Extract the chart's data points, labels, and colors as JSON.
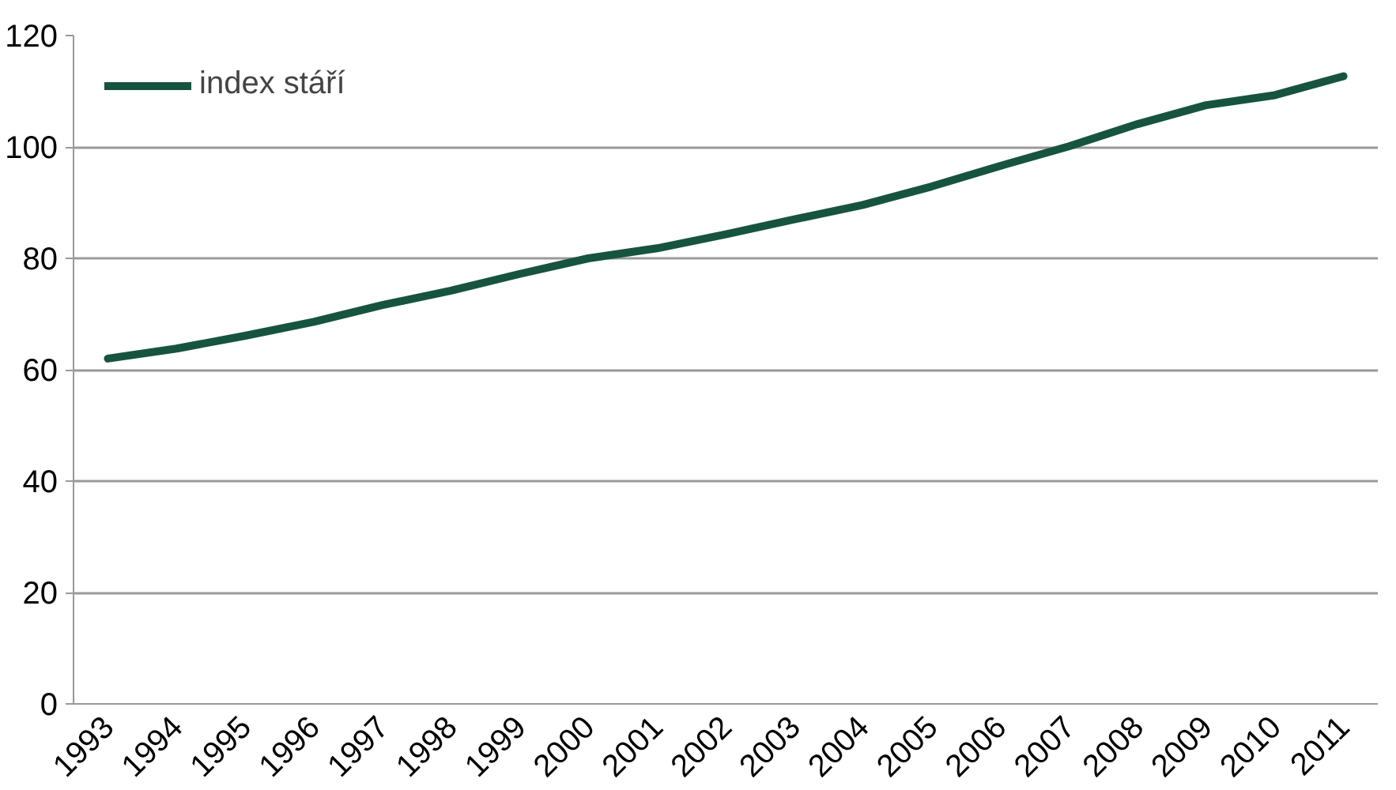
{
  "chart_data": {
    "type": "line",
    "categories": [
      "1993",
      "1994",
      "1995",
      "1996",
      "1997",
      "1998",
      "1999",
      "2000",
      "2001",
      "2002",
      "2003",
      "2004",
      "2005",
      "2006",
      "2007",
      "2008",
      "2009",
      "2010",
      "2011"
    ],
    "series": [
      {
        "name": "index stáří",
        "color": "#175440",
        "values": [
          62.0,
          63.8,
          66.1,
          68.6,
          71.6,
          74.2,
          77.2,
          80.0,
          81.8,
          84.3,
          87.0,
          89.6,
          92.9,
          96.6,
          100.1,
          104.1,
          107.5,
          109.3,
          112.7
        ]
      }
    ],
    "ylim": [
      0,
      120
    ],
    "yticks": [
      0,
      20,
      40,
      60,
      80,
      100,
      120
    ],
    "grid": "y",
    "legend": "top left",
    "marker": "none",
    "line_style": "solid"
  }
}
